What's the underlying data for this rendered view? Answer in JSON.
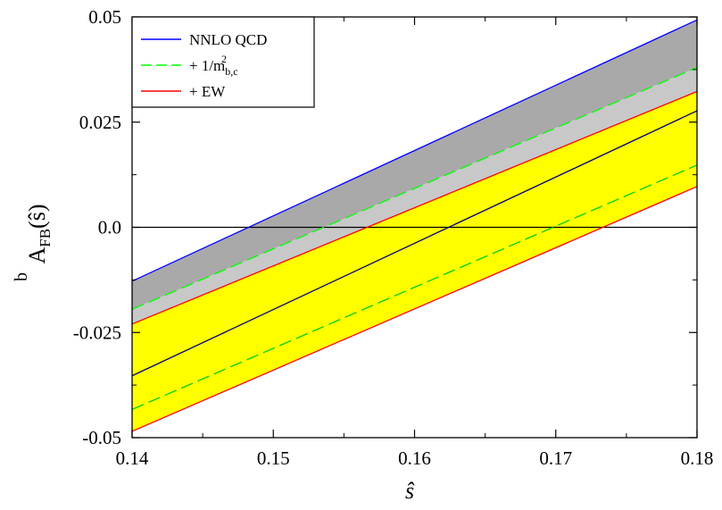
{
  "chart_data": {
    "type": "line",
    "xlabel": "ŝ",
    "ylabel": {
      "accent": "b",
      "main": "A",
      "sub": "FB",
      "arg": "(ŝ)"
    },
    "xlim": [
      0.14,
      0.18
    ],
    "ylim": [
      -0.05,
      0.05
    ],
    "x_ticks": [
      "0.14",
      "0.15",
      "0.16",
      "0.17",
      "0.18"
    ],
    "x_tick_values": [
      0.14,
      0.15,
      0.16,
      0.17,
      0.18
    ],
    "y_ticks": [
      "-0.05",
      "-0.025",
      "0.0",
      "0.025",
      "0.05"
    ],
    "y_tick_values": [
      -0.05,
      -0.025,
      0.0,
      0.025,
      0.05
    ],
    "grid": false,
    "legend_position": "top-left",
    "legend": [
      {
        "label": "NNLO QCD",
        "color": "#0000ff",
        "dash": "solid",
        "sup": "",
        "sub": ""
      },
      {
        "label": "+ 1/m",
        "color": "#00ff00",
        "dash": "dashed",
        "sup": "2",
        "sub": "b,c"
      },
      {
        "label": "+ EW",
        "color": "#ff0000",
        "dash": "solid",
        "sup": "",
        "sub": ""
      }
    ],
    "bands": [
      {
        "name_ref": "NNLO QCD",
        "fill": "#a9a9a9",
        "x": [
          0.14,
          0.18
        ],
        "upper": [
          -0.0128,
          0.0493
        ],
        "lower": [
          -0.0195,
          0.038
        ]
      },
      {
        "name_ref": "+ 1/m",
        "fill": "#c8c8c8",
        "x": [
          0.14,
          0.18
        ],
        "upper": [
          -0.0195,
          0.038
        ],
        "lower": [
          -0.023,
          0.0323
        ]
      },
      {
        "name_ref": "+ EW",
        "fill": "#ffff00",
        "x": [
          0.14,
          0.18
        ],
        "upper": [
          -0.023,
          0.0323
        ],
        "lower": [
          -0.0485,
          0.0097
        ]
      }
    ],
    "series": [
      {
        "color": "#0000ff",
        "dash": "solid",
        "x": [
          0.14,
          0.18
        ],
        "y": [
          -0.0128,
          0.0493
        ]
      },
      {
        "color": "#00ff00",
        "dash": "dashed",
        "x": [
          0.14,
          0.18
        ],
        "y": [
          -0.0195,
          0.038
        ]
      },
      {
        "color": "#ff0000",
        "dash": "solid",
        "x": [
          0.14,
          0.18
        ],
        "y": [
          -0.023,
          0.0323
        ]
      },
      {
        "color": "#000080",
        "dash": "solid",
        "x": [
          0.14,
          0.18
        ],
        "y": [
          -0.0353,
          0.0277
        ]
      },
      {
        "color": "#00cc00",
        "dash": "dashed",
        "x": [
          0.14,
          0.18
        ],
        "y": [
          -0.0433,
          0.0148
        ]
      },
      {
        "color": "#ff0000",
        "dash": "solid",
        "x": [
          0.14,
          0.18
        ],
        "y": [
          -0.0485,
          0.0097
        ]
      }
    ],
    "zero_line": {
      "y": 0.0,
      "color": "#000000"
    }
  }
}
